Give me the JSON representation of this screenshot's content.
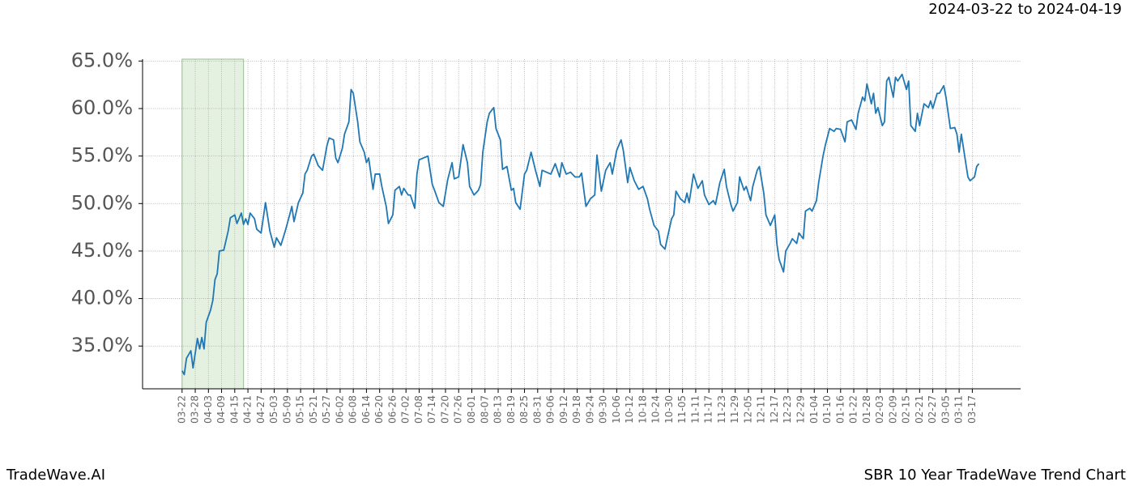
{
  "chart_data": {
    "type": "line",
    "date_range": "2024-03-22 to 2024-04-19",
    "brand": "TradeWave.AI",
    "title": "SBR 10 Year TradeWave Trend Chart",
    "shaded_range": [
      0,
      28
    ],
    "shade_color": "#d9ead3",
    "grid": true,
    "xlim": [
      -18,
      382
    ],
    "ylim": [
      30.5,
      65.2
    ],
    "yticks": [
      {
        "value": 35,
        "label": "35.0%"
      },
      {
        "value": 40,
        "label": "40.0%"
      },
      {
        "value": 45,
        "label": "45.0%"
      },
      {
        "value": 50,
        "label": "50.0%"
      },
      {
        "value": 55,
        "label": "55.0%"
      },
      {
        "value": 60,
        "label": "60.0%"
      },
      {
        "value": 65,
        "label": "65.0%"
      }
    ],
    "xticks": [
      {
        "value": 0,
        "label": "03-22"
      },
      {
        "value": 6,
        "label": "03-28"
      },
      {
        "value": 12,
        "label": "04-03"
      },
      {
        "value": 18,
        "label": "04-09"
      },
      {
        "value": 24,
        "label": "04-15"
      },
      {
        "value": 30,
        "label": "04-21"
      },
      {
        "value": 36,
        "label": "04-27"
      },
      {
        "value": 42,
        "label": "05-03"
      },
      {
        "value": 48,
        "label": "05-09"
      },
      {
        "value": 54,
        "label": "05-15"
      },
      {
        "value": 60,
        "label": "05-21"
      },
      {
        "value": 66,
        "label": "05-27"
      },
      {
        "value": 72,
        "label": "06-02"
      },
      {
        "value": 78,
        "label": "06-08"
      },
      {
        "value": 84,
        "label": "06-14"
      },
      {
        "value": 90,
        "label": "06-20"
      },
      {
        "value": 96,
        "label": "06-26"
      },
      {
        "value": 102,
        "label": "07-02"
      },
      {
        "value": 108,
        "label": "07-08"
      },
      {
        "value": 114,
        "label": "07-14"
      },
      {
        "value": 120,
        "label": "07-20"
      },
      {
        "value": 126,
        "label": "07-26"
      },
      {
        "value": 132,
        "label": "08-01"
      },
      {
        "value": 138,
        "label": "08-07"
      },
      {
        "value": 144,
        "label": "08-13"
      },
      {
        "value": 150,
        "label": "08-19"
      },
      {
        "value": 156,
        "label": "08-25"
      },
      {
        "value": 162,
        "label": "08-31"
      },
      {
        "value": 168,
        "label": "09-06"
      },
      {
        "value": 174,
        "label": "09-12"
      },
      {
        "value": 180,
        "label": "09-18"
      },
      {
        "value": 186,
        "label": "09-24"
      },
      {
        "value": 192,
        "label": "09-30"
      },
      {
        "value": 198,
        "label": "10-06"
      },
      {
        "value": 204,
        "label": "10-12"
      },
      {
        "value": 210,
        "label": "10-18"
      },
      {
        "value": 216,
        "label": "10-24"
      },
      {
        "value": 222,
        "label": "10-30"
      },
      {
        "value": 228,
        "label": "11-05"
      },
      {
        "value": 234,
        "label": "11-11"
      },
      {
        "value": 240,
        "label": "11-17"
      },
      {
        "value": 246,
        "label": "11-23"
      },
      {
        "value": 252,
        "label": "11-29"
      },
      {
        "value": 258,
        "label": "12-05"
      },
      {
        "value": 264,
        "label": "12-11"
      },
      {
        "value": 270,
        "label": "12-17"
      },
      {
        "value": 276,
        "label": "12-23"
      },
      {
        "value": 282,
        "label": "12-29"
      },
      {
        "value": 288,
        "label": "01-04"
      },
      {
        "value": 294,
        "label": "01-10"
      },
      {
        "value": 300,
        "label": "01-16"
      },
      {
        "value": 306,
        "label": "01-22"
      },
      {
        "value": 312,
        "label": "01-28"
      },
      {
        "value": 318,
        "label": "02-03"
      },
      {
        "value": 324,
        "label": "02-09"
      },
      {
        "value": 330,
        "label": "02-15"
      },
      {
        "value": 336,
        "label": "02-21"
      },
      {
        "value": 342,
        "label": "02-27"
      },
      {
        "value": 348,
        "label": "03-05"
      },
      {
        "value": 354,
        "label": "03-11"
      },
      {
        "value": 360,
        "label": "03-17"
      }
    ],
    "x": [
      0,
      1,
      2,
      4,
      5,
      7,
      8,
      9,
      10,
      11,
      13,
      14,
      15,
      16,
      17,
      19,
      21,
      22,
      24,
      25,
      27,
      28,
      29,
      30,
      31,
      33,
      34,
      36,
      38,
      40,
      42,
      43,
      45,
      47,
      49,
      50,
      51,
      53,
      55,
      56,
      57,
      59,
      60,
      62,
      64,
      66,
      67,
      69,
      70,
      71,
      73,
      74,
      76,
      77,
      78,
      80,
      81,
      83,
      84,
      85,
      87,
      88,
      90,
      91,
      93,
      94,
      96,
      97,
      99,
      100,
      101,
      103,
      104,
      106,
      107,
      108,
      110,
      112,
      114,
      115,
      117,
      119,
      121,
      123,
      124,
      126,
      128,
      130,
      131,
      133,
      135,
      136,
      137,
      139,
      140,
      142,
      143,
      145,
      146,
      148,
      150,
      151,
      152,
      154,
      156,
      157,
      159,
      161,
      163,
      164,
      166,
      168,
      170,
      172,
      173,
      175,
      177,
      179,
      181,
      182,
      184,
      186,
      188,
      189,
      191,
      193,
      195,
      196,
      198,
      200,
      201,
      203,
      204,
      206,
      208,
      210,
      212,
      213,
      215,
      217,
      218,
      220,
      221,
      223,
      224,
      225,
      227,
      229,
      230,
      231,
      233,
      235,
      237,
      238,
      240,
      242,
      243,
      245,
      247,
      248,
      250,
      251,
      253,
      254,
      256,
      257,
      259,
      260,
      262,
      263,
      265,
      266,
      268,
      270,
      271,
      272,
      274,
      275,
      277,
      278,
      280,
      281,
      283,
      284,
      286,
      287,
      289,
      290,
      292,
      293,
      295,
      297,
      298,
      300,
      302,
      303,
      305,
      307,
      308,
      310,
      311,
      312,
      314,
      315,
      316,
      317,
      319,
      320,
      321,
      322,
      324,
      325,
      326,
      328,
      330,
      331,
      332,
      334,
      335,
      336,
      338,
      340,
      341,
      342,
      344,
      345,
      347,
      348,
      350,
      352,
      353,
      354,
      355,
      357,
      358,
      359,
      360,
      361,
      362,
      363
    ],
    "series": [
      {
        "color": "#1f77b4",
        "values": [
          32.4,
          32.0,
          33.7,
          34.5,
          32.7,
          35.8,
          34.7,
          35.9,
          34.7,
          37.5,
          38.8,
          39.8,
          42.0,
          42.6,
          45.0,
          45.1,
          47.1,
          48.5,
          48.8,
          47.9,
          49.0,
          47.8,
          48.4,
          47.8,
          49.0,
          48.4,
          47.3,
          46.9,
          50.1,
          47.1,
          45.4,
          46.4,
          45.6,
          47.1,
          48.8,
          49.7,
          48.1,
          50.1,
          51.1,
          53.1,
          53.5,
          55.0,
          55.2,
          54.0,
          53.5,
          56.1,
          56.9,
          56.7,
          54.8,
          54.3,
          55.8,
          57.3,
          58.6,
          62.0,
          61.6,
          58.6,
          56.5,
          55.4,
          54.3,
          54.8,
          51.5,
          53.1,
          53.1,
          51.8,
          49.7,
          47.9,
          48.8,
          51.4,
          51.8,
          50.9,
          51.6,
          50.9,
          50.9,
          49.5,
          53.1,
          54.6,
          54.8,
          55.0,
          52.0,
          51.4,
          50.1,
          49.7,
          52.5,
          54.3,
          52.6,
          52.8,
          56.2,
          54.3,
          51.8,
          50.9,
          51.4,
          52.0,
          55.4,
          58.6,
          59.5,
          60.1,
          57.9,
          56.7,
          53.6,
          53.9,
          51.4,
          51.6,
          50.1,
          49.4,
          53.1,
          53.5,
          55.4,
          53.5,
          51.8,
          53.5,
          53.3,
          53.1,
          54.2,
          52.8,
          54.3,
          53.1,
          53.3,
          52.8,
          52.8,
          53.2,
          49.7,
          50.5,
          50.9,
          55.1,
          51.3,
          53.5,
          54.3,
          53.1,
          55.6,
          56.7,
          55.6,
          52.2,
          53.8,
          52.4,
          51.5,
          51.8,
          50.5,
          49.4,
          47.7,
          47.1,
          45.7,
          45.2,
          46.3,
          48.4,
          48.8,
          51.3,
          50.5,
          50.1,
          51.1,
          50.1,
          53.1,
          51.6,
          52.4,
          50.9,
          49.9,
          50.3,
          49.9,
          52.2,
          53.6,
          51.8,
          49.9,
          49.2,
          50.1,
          52.8,
          51.4,
          51.8,
          50.3,
          51.8,
          53.5,
          53.9,
          51.1,
          48.8,
          47.7,
          48.8,
          45.7,
          44.1,
          42.8,
          45.0,
          45.8,
          46.3,
          45.8,
          46.9,
          46.3,
          49.2,
          49.5,
          49.2,
          50.3,
          52.2,
          55.0,
          56.1,
          57.9,
          57.6,
          57.9,
          57.8,
          56.5,
          58.6,
          58.8,
          57.8,
          59.5,
          61.2,
          60.8,
          62.6,
          60.5,
          61.6,
          59.5,
          60.1,
          58.2,
          58.6,
          62.9,
          63.3,
          61.2,
          63.3,
          62.9,
          63.6,
          62.0,
          62.9,
          58.2,
          57.6,
          59.5,
          58.2,
          60.5,
          60.1,
          60.8,
          60.0,
          61.6,
          61.6,
          62.4,
          61.2,
          57.9,
          58.0,
          57.3,
          55.4,
          57.3,
          54.3,
          52.8,
          52.4,
          52.6,
          52.8,
          53.9,
          54.2
        ]
      }
    ]
  }
}
